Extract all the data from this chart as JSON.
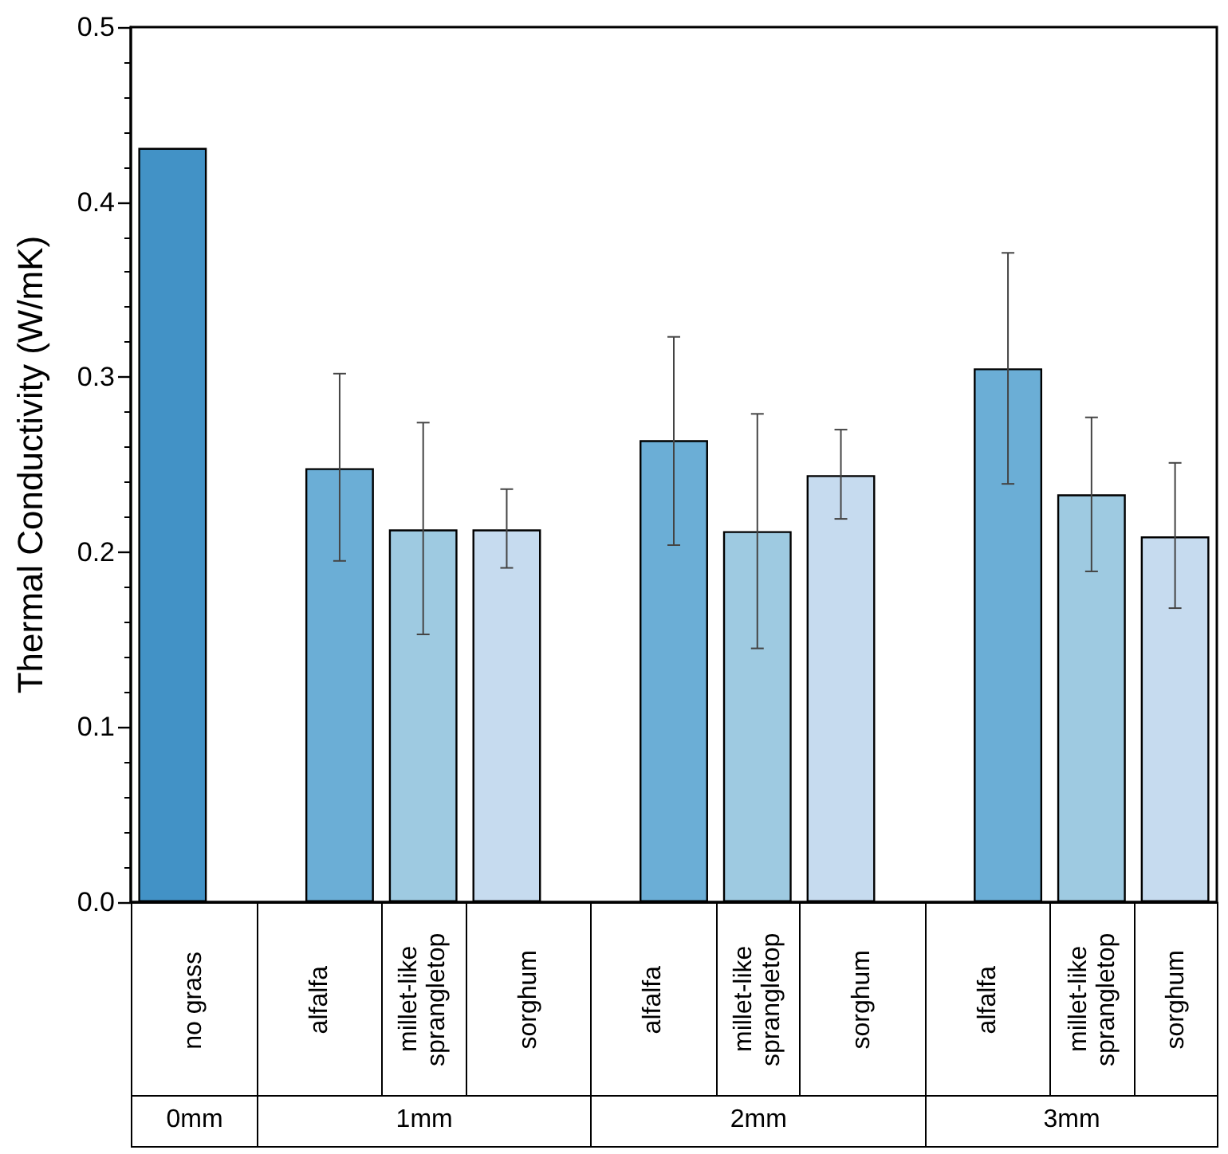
{
  "chart_data": {
    "type": "bar",
    "ylabel": "Thermal Conductivity (W/mK)",
    "categories": [
      "no grass",
      null,
      "alfalfa",
      "millet-like sprangletop",
      "sorghum",
      null,
      "alfalfa",
      "millet-like sprangletop",
      "sorghum",
      null,
      "alfalfa",
      "millet-like sprangletop",
      "sorghum"
    ],
    "values": [
      0.431,
      null,
      0.248,
      0.213,
      0.213,
      null,
      0.264,
      0.212,
      0.244,
      null,
      0.305,
      0.233,
      0.209
    ],
    "colors": [
      "#4292c6",
      null,
      "#6baed6",
      "#9ecae1",
      "#c6dbef",
      null,
      "#6baed6",
      "#9ecae1",
      "#c6dbef",
      null,
      "#6baed6",
      "#9ecae1",
      "#c6dbef"
    ],
    "errors": [
      null,
      null,
      [
        0.195,
        0.302
      ],
      [
        0.153,
        0.274
      ],
      [
        0.191,
        0.236
      ],
      null,
      [
        0.204,
        0.323
      ],
      [
        0.145,
        0.279
      ],
      [
        0.219,
        0.27
      ],
      null,
      [
        0.239,
        0.371
      ],
      [
        0.189,
        0.277
      ],
      [
        0.168,
        0.251
      ]
    ],
    "annotations": [
      "0mm",
      "1mm",
      "2mm",
      "3mm"
    ],
    "ylim": [
      0,
      0.5
    ],
    "yticks": [
      {
        "value": 0,
        "label": "0.0"
      },
      0.1,
      0.2,
      0.3,
      0.4,
      0.5
    ],
    "grid": false
  }
}
